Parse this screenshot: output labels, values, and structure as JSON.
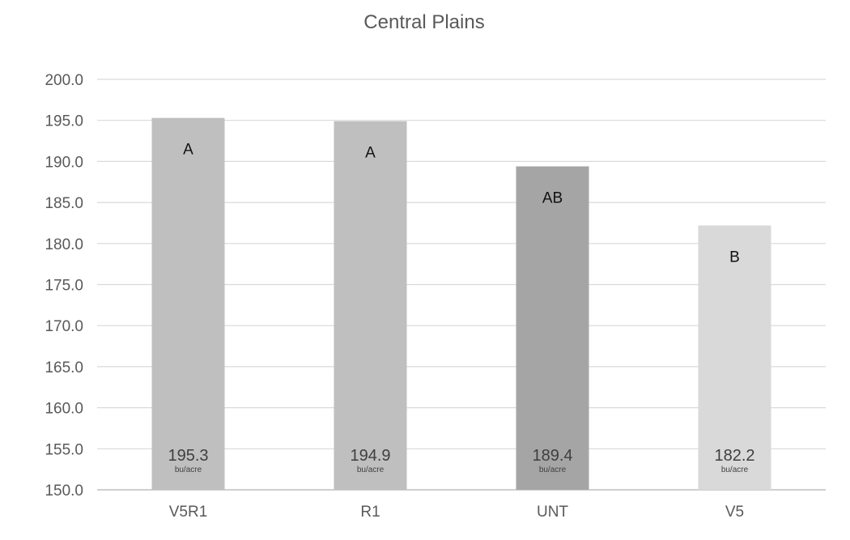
{
  "chart_data": {
    "type": "bar",
    "title": "Central Plains",
    "xlabel": "",
    "ylabel": "",
    "ylim": [
      150,
      200
    ],
    "ytick_step": 5,
    "ytick_labels": [
      "150.0",
      "155.0",
      "160.0",
      "165.0",
      "170.0",
      "175.0",
      "180.0",
      "185.0",
      "190.0",
      "195.0",
      "200.0"
    ],
    "categories": [
      "V5R1",
      "R1",
      "UNT",
      "V5"
    ],
    "values": [
      195.3,
      194.9,
      189.4,
      182.2
    ],
    "value_labels": [
      "195.3",
      "194.9",
      "189.4",
      "182.2"
    ],
    "unit_label": "bu/acre",
    "significance_letters": [
      "A",
      "A",
      "AB",
      "B"
    ],
    "bar_colors": [
      "#bfbfbf",
      "#bfbfbf",
      "#a6a5a5",
      "#d9d9d9"
    ],
    "gridlines": true,
    "legend": "none",
    "colors": {
      "grid": "#d9d9d9",
      "text": "#595959"
    }
  }
}
